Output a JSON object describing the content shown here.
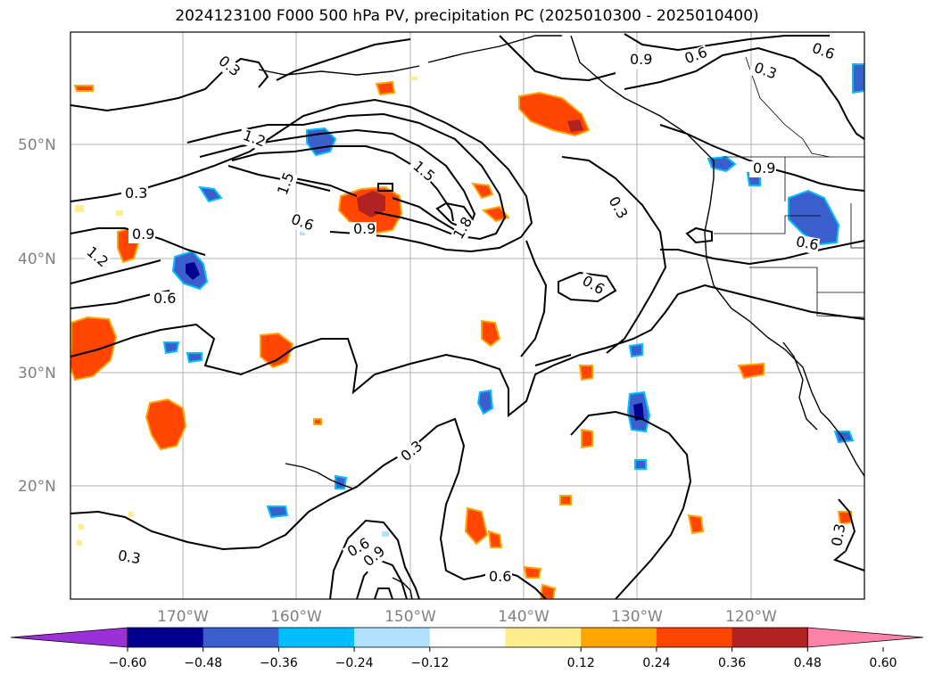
{
  "title": "2024123100 F000 500 hPa PV, precipitation PC (2025010300 - 2025010400)",
  "lat_labels": [
    "50°N",
    "40°N",
    "30°N",
    "20°N"
  ],
  "lon_labels": [
    "170°W",
    "160°W",
    "150°W",
    "140°W",
    "130°W",
    "120°W"
  ],
  "contour_labels": [
    "0.3",
    "0.3",
    "0.3",
    "0.3",
    "0.3",
    "0.3",
    "0.3",
    "0.6",
    "0.6",
    "0.6",
    "0.6",
    "0.6",
    "0.6",
    "0.6",
    "0.9",
    "0.9",
    "0.9",
    "0.9",
    "0.9",
    "1.2",
    "1.2",
    "1.5",
    "1.5",
    "1.8",
    "0.6"
  ],
  "colorbar": {
    "ticks": [
      "−0.60",
      "−0.48",
      "−0.36",
      "−0.24",
      "−0.12",
      "0.12",
      "0.24",
      "0.36",
      "0.48",
      "0.60"
    ],
    "colors": [
      "#9b30d6",
      "#000090",
      "#3a5fcd",
      "#00bfff",
      "#b0e2ff",
      "#ffffff",
      "#ffec8b",
      "#ffa500",
      "#ff4500",
      "#b22222",
      "#ff82ab"
    ]
  },
  "colors": {
    "positive_fill": "#ff4500",
    "positive_edge": "#ffa500",
    "positive_core": "#b22222",
    "negative_fill": "#3a5fcd",
    "negative_edge": "#00bfff",
    "negative_core": "#000090",
    "grid": "#b0b0b0",
    "axis_label": "#808080"
  }
}
